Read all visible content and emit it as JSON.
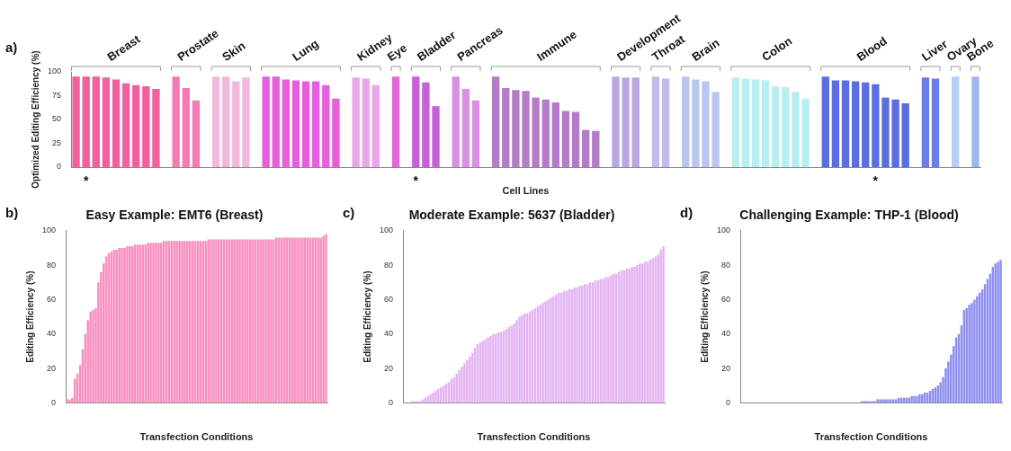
{
  "chart_data": [
    {
      "type": "bar",
      "panel_label": "a)",
      "x_label": "Cell Lines",
      "y_label": "Optimized Editing Efficiency (%)",
      "ylim": [
        0,
        100
      ],
      "yticks": [
        0,
        25,
        50,
        75,
        100
      ],
      "grid": false,
      "groups": [
        {
          "name": "Breast",
          "color": "#f0609e",
          "categories": [
            null,
            "*",
            null,
            null,
            null,
            null,
            null,
            null,
            null
          ],
          "values": [
            95,
            95,
            95,
            94,
            92,
            88,
            86,
            85,
            82
          ]
        },
        {
          "name": "Prostate",
          "color": "#f47ab6",
          "categories": [
            null,
            null,
            null
          ],
          "values": [
            95,
            83,
            70
          ]
        },
        {
          "name": "Skin",
          "color": "#f2b8dc",
          "categories": [
            null,
            null,
            null,
            null
          ],
          "values": [
            95,
            95,
            90,
            94
          ]
        },
        {
          "name": "Lung",
          "color": "#e65ede",
          "categories": [
            null,
            null,
            null,
            null,
            null,
            null,
            null,
            null
          ],
          "values": [
            95,
            95,
            92,
            91,
            90,
            90,
            86,
            72
          ]
        },
        {
          "name": "Kidney",
          "color": "#eca4ea",
          "categories": [
            null,
            null,
            null
          ],
          "values": [
            94,
            93,
            86
          ]
        },
        {
          "name": "Eye",
          "color": "#e068d8",
          "categories": [
            null
          ],
          "values": [
            95
          ]
        },
        {
          "name": "Bladder",
          "color": "#c65fd8",
          "categories": [
            "*",
            null,
            null
          ],
          "values": [
            95,
            89,
            64
          ]
        },
        {
          "name": "Pancreas",
          "color": "#d790e2",
          "categories": [
            null,
            null,
            null
          ],
          "values": [
            95,
            82,
            70
          ]
        },
        {
          "name": "Immune",
          "color": "#b47bc8",
          "categories": [
            null,
            null,
            null,
            null,
            null,
            null,
            null,
            null,
            null,
            null,
            null
          ],
          "values": [
            95,
            83,
            81,
            80,
            73,
            71,
            68,
            59,
            58,
            39,
            38
          ]
        },
        {
          "name": "Development",
          "color": "#b9a8e2",
          "categories": [
            null,
            null,
            null
          ],
          "values": [
            95,
            94,
            94
          ]
        },
        {
          "name": "Throat",
          "color": "#c6b9ee",
          "categories": [
            null,
            null
          ],
          "values": [
            95,
            93
          ]
        },
        {
          "name": "Brain",
          "color": "#b9c6ee",
          "categories": [
            null,
            null,
            null,
            null
          ],
          "values": [
            95,
            92,
            90,
            79
          ]
        },
        {
          "name": "Colon",
          "color": "#b6eef2",
          "categories": [
            null,
            null,
            null,
            null,
            null,
            null,
            null,
            null
          ],
          "values": [
            94,
            93,
            92,
            91,
            85,
            84,
            79,
            72
          ]
        },
        {
          "name": "Blood",
          "color": "#5b6ee0",
          "categories": [
            null,
            null,
            null,
            null,
            null,
            "*",
            null,
            null,
            null
          ],
          "values": [
            95,
            91,
            91,
            90,
            89,
            87,
            73,
            71,
            67
          ]
        },
        {
          "name": "Liver",
          "color": "#6a7ee8",
          "categories": [
            null,
            null
          ],
          "values": [
            94,
            93
          ]
        },
        {
          "name": "Ovary",
          "color": "#b6cdf4",
          "categories": [
            null
          ],
          "values": [
            95
          ]
        },
        {
          "name": "Bone",
          "color": "#9db7f0",
          "categories": [
            null
          ],
          "values": [
            95
          ]
        }
      ]
    },
    {
      "type": "bar",
      "panel_label": "b)",
      "title": "Easy Example: EMT6 (Breast)",
      "x_label": "Transfection Conditions",
      "y_label": "Editing Efficiency (%)",
      "ylim": [
        0,
        100
      ],
      "yticks": [
        0,
        20,
        40,
        60,
        80,
        100
      ],
      "grid": false,
      "color": "#f78fbf",
      "categories": [
        null,
        null,
        null,
        null,
        null,
        null,
        null,
        null,
        null,
        null,
        null,
        null,
        null,
        null,
        null,
        null,
        null,
        null,
        null,
        null,
        null,
        null,
        null,
        null,
        null,
        null,
        null,
        null,
        null,
        null,
        null,
        null,
        null,
        null,
        null,
        null,
        null,
        null,
        null,
        null,
        null,
        null,
        null,
        null,
        null,
        null,
        null,
        null,
        null,
        null,
        null,
        null,
        null,
        null,
        null,
        null,
        null,
        null,
        null,
        null,
        null,
        null,
        null,
        null,
        null,
        null,
        null,
        null,
        null,
        null,
        null,
        null,
        null,
        null,
        null,
        null,
        null,
        null,
        null,
        null,
        null,
        null,
        null,
        null,
        null,
        null,
        null,
        null,
        null,
        null,
        null,
        null,
        null,
        null,
        null,
        null,
        null,
        null,
        null,
        null
      ],
      "values": [
        2,
        2,
        3,
        14,
        17,
        22,
        31,
        40,
        48,
        53,
        54,
        55,
        70,
        76,
        81,
        85,
        87,
        88,
        89,
        89,
        90,
        90,
        90,
        91,
        91,
        91,
        92,
        92,
        92,
        92,
        92,
        93,
        93,
        93,
        93,
        93,
        93,
        94,
        94,
        94,
        94,
        94,
        94,
        94,
        94,
        94,
        94,
        94,
        94,
        94,
        94,
        94,
        94,
        94,
        95,
        95,
        95,
        95,
        95,
        95,
        95,
        95,
        95,
        95,
        95,
        95,
        95,
        95,
        95,
        95,
        95,
        95,
        95,
        95,
        95,
        95,
        95,
        95,
        95,
        95,
        96,
        96,
        96,
        96,
        96,
        96,
        96,
        96,
        96,
        96,
        96,
        96,
        96,
        96,
        96,
        96,
        96,
        96,
        97,
        98
      ]
    },
    {
      "type": "bar",
      "panel_label": "c)",
      "title": "Moderate Example: 5637 (Bladder)",
      "x_label": "Transfection Conditions",
      "y_label": "Editing Efficiency (%)",
      "ylim": [
        0,
        100
      ],
      "yticks": [
        0,
        20,
        40,
        60,
        80,
        100
      ],
      "grid": false,
      "color": "#e4b4f2",
      "categories": [
        null,
        null,
        null,
        null,
        null,
        null,
        null,
        null,
        null,
        null,
        null,
        null,
        null,
        null,
        null,
        null,
        null,
        null,
        null,
        null,
        null,
        null,
        null,
        null,
        null,
        null,
        null,
        null,
        null,
        null,
        null,
        null,
        null,
        null,
        null,
        null,
        null,
        null,
        null,
        null,
        null,
        null,
        null,
        null,
        null,
        null,
        null,
        null,
        null,
        null,
        null,
        null,
        null,
        null,
        null,
        null,
        null,
        null,
        null,
        null,
        null,
        null,
        null,
        null,
        null,
        null,
        null,
        null,
        null,
        null,
        null,
        null,
        null,
        null,
        null,
        null,
        null,
        null,
        null,
        null,
        null,
        null,
        null,
        null,
        null,
        null,
        null,
        null,
        null,
        null,
        null,
        null,
        null,
        null,
        null,
        null,
        null,
        null,
        null,
        null
      ],
      "values": [
        0,
        0,
        0,
        1,
        1,
        1,
        1,
        2,
        3,
        4,
        5,
        6,
        7,
        8,
        9,
        10,
        11,
        12,
        14,
        15,
        17,
        19,
        21,
        23,
        25,
        27,
        29,
        32,
        34,
        35,
        36,
        37,
        38,
        39,
        40,
        40,
        41,
        41,
        42,
        43,
        44,
        45,
        46,
        48,
        50,
        51,
        52,
        52,
        53,
        54,
        55,
        56,
        57,
        58,
        59,
        60,
        61,
        62,
        63,
        64,
        64,
        65,
        65,
        66,
        66,
        67,
        67,
        68,
        68,
        69,
        69,
        70,
        70,
        71,
        71,
        72,
        72,
        73,
        73,
        74,
        75,
        75,
        76,
        77,
        77,
        78,
        78,
        79,
        79,
        80,
        81,
        81,
        82,
        82,
        83,
        84,
        85,
        86,
        89,
        91
      ]
    },
    {
      "type": "bar",
      "panel_label": "d)",
      "title": "Challenging Example: THP-1 (Blood)",
      "x_label": "Transfection Conditions",
      "y_label": "Editing Efficiency (%)",
      "ylim": [
        0,
        100
      ],
      "yticks": [
        0,
        20,
        40,
        60,
        80,
        100
      ],
      "grid": false,
      "color": "#8f8ff0",
      "categories": [
        null,
        null,
        null,
        null,
        null,
        null,
        null,
        null,
        null,
        null,
        null,
        null,
        null,
        null,
        null,
        null,
        null,
        null,
        null,
        null,
        null,
        null,
        null,
        null,
        null,
        null,
        null,
        null,
        null,
        null,
        null,
        null,
        null,
        null,
        null,
        null,
        null,
        null,
        null,
        null,
        null,
        null,
        null,
        null,
        null,
        null,
        null,
        null,
        null,
        null,
        null,
        null,
        null,
        null,
        null,
        null,
        null,
        null,
        null,
        null,
        null,
        null,
        null,
        null,
        null,
        null,
        null,
        null,
        null,
        null,
        null,
        null,
        null,
        null,
        null,
        null,
        null,
        null,
        null,
        null,
        null,
        null,
        null,
        null,
        null,
        null,
        null,
        null,
        null,
        null,
        null,
        null,
        null,
        null,
        null,
        null,
        null,
        null,
        null,
        null
      ],
      "values": [
        0,
        0,
        0,
        0,
        0,
        0,
        0,
        0,
        0,
        0,
        0,
        0,
        0,
        0,
        0,
        0,
        0,
        0,
        0,
        0,
        0,
        0,
        0,
        0,
        0,
        0,
        0,
        0,
        0,
        0,
        0,
        0,
        0,
        0,
        0,
        0,
        0,
        0,
        0,
        0,
        0,
        0,
        0,
        0,
        0,
        0,
        1,
        1,
        1,
        1,
        1,
        1,
        2,
        2,
        2,
        2,
        2,
        2,
        2,
        2,
        3,
        3,
        3,
        3,
        3,
        4,
        4,
        4,
        5,
        5,
        6,
        6,
        7,
        8,
        9,
        10,
        12,
        15,
        20,
        24,
        28,
        33,
        38,
        40,
        45,
        54,
        55,
        57,
        58,
        60,
        62,
        64,
        66,
        69,
        72,
        75,
        79,
        81,
        82,
        83
      ]
    }
  ]
}
